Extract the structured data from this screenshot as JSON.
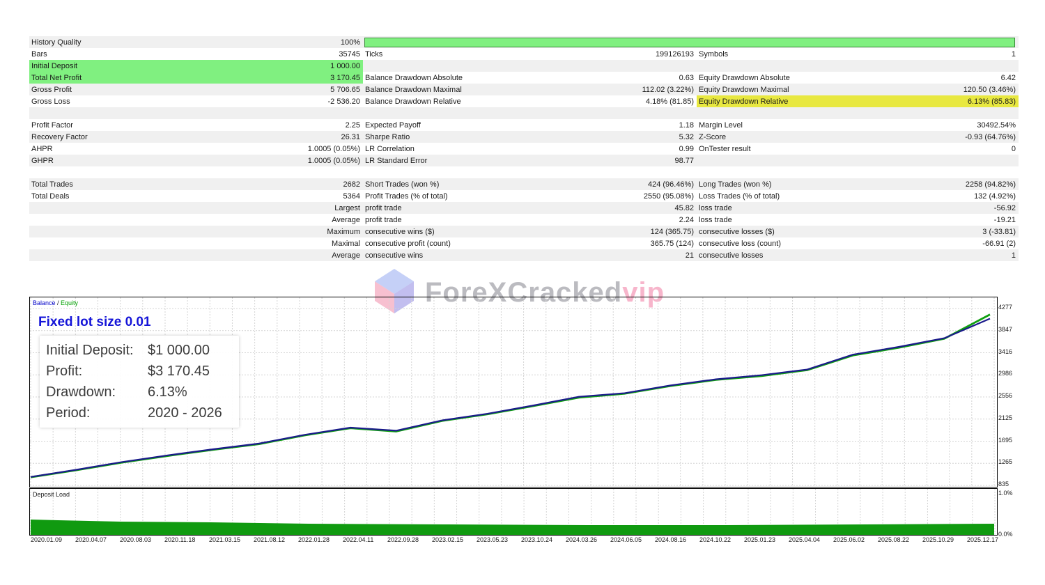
{
  "stats": {
    "rows": [
      {
        "c1": {
          "label": "History Quality",
          "value": "100%"
        },
        "quality_bar": true
      },
      {
        "c1": {
          "label": "Bars",
          "value": "35745"
        },
        "c2": {
          "label": "Ticks",
          "value": "199126193"
        },
        "c3": {
          "label": "Symbols",
          "value": "1"
        }
      },
      {
        "c1": {
          "label": "Initial Deposit",
          "value": "1 000.00",
          "highlight": "green"
        }
      },
      {
        "c1": {
          "label": "Total Net Profit",
          "value": "3 170.45",
          "highlight": "green"
        },
        "c2": {
          "label": "Balance Drawdown Absolute",
          "value": "0.63"
        },
        "c3": {
          "label": "Equity Drawdown Absolute",
          "value": "6.42"
        }
      },
      {
        "c1": {
          "label": "Gross Profit",
          "value": "5 706.65"
        },
        "c2": {
          "label": "Balance Drawdown Maximal",
          "value": "112.02 (3.22%)"
        },
        "c3": {
          "label": "Equity Drawdown Maximal",
          "value": "120.50 (3.46%)"
        }
      },
      {
        "c1": {
          "label": "Gross Loss",
          "value": "-2 536.20"
        },
        "c2": {
          "label": "Balance Drawdown Relative",
          "value": "4.18% (81.85)"
        },
        "c3": {
          "label": "Equity Drawdown Relative",
          "value": "6.13% (85.83)",
          "highlight": "yellow"
        }
      },
      {},
      {
        "c1": {
          "label": "Profit Factor",
          "value": "2.25"
        },
        "c2": {
          "label": "Expected Payoff",
          "value": "1.18"
        },
        "c3": {
          "label": "Margin Level",
          "value": "30492.54%"
        }
      },
      {
        "c1": {
          "label": "Recovery Factor",
          "value": "26.31"
        },
        "c2": {
          "label": "Sharpe Ratio",
          "value": "5.32"
        },
        "c3": {
          "label": "Z-Score",
          "value": "-0.93 (64.76%)"
        }
      },
      {
        "c1": {
          "label": "AHPR",
          "value": "1.0005 (0.05%)"
        },
        "c2": {
          "label": "LR Correlation",
          "value": "0.99"
        },
        "c3": {
          "label": "OnTester result",
          "value": "0"
        }
      },
      {
        "c1": {
          "label": "GHPR",
          "value": "1.0005 (0.05%)"
        },
        "c2": {
          "label": "LR Standard Error",
          "value": "98.77"
        }
      },
      {},
      {
        "c1": {
          "label": "Total Trades",
          "value": "2682"
        },
        "c2": {
          "label": "Short Trades (won %)",
          "value": "424 (96.46%)"
        },
        "c3": {
          "label": "Long Trades (won %)",
          "value": "2258 (94.82%)"
        }
      },
      {
        "c1": {
          "label": "Total Deals",
          "value": "5364"
        },
        "c2": {
          "label": "Profit Trades (% of total)",
          "value": "2550 (95.08%)"
        },
        "c3": {
          "label": "Loss Trades (% of total)",
          "value": "132 (4.92%)"
        }
      },
      {
        "c1": {
          "label": "Largest",
          "align": "right"
        },
        "c2": {
          "label": "profit trade",
          "value": "45.82"
        },
        "c3": {
          "label": "loss trade",
          "value": "-56.92"
        }
      },
      {
        "c1": {
          "label": "Average",
          "align": "right"
        },
        "c2": {
          "label": "profit trade",
          "value": "2.24"
        },
        "c3": {
          "label": "loss trade",
          "value": "-19.21"
        }
      },
      {
        "c1": {
          "label": "Maximum",
          "align": "right"
        },
        "c2": {
          "label": "consecutive wins ($)",
          "value": "124 (365.75)"
        },
        "c3": {
          "label": "consecutive losses ($)",
          "value": "3 (-33.81)"
        }
      },
      {
        "c1": {
          "label": "Maximal",
          "align": "right"
        },
        "c2": {
          "label": "consecutive profit (count)",
          "value": "365.75 (124)"
        },
        "c3": {
          "label": "consecutive loss (count)",
          "value": "-66.91 (2)"
        }
      },
      {
        "c1": {
          "label": "Average",
          "align": "right"
        },
        "c2": {
          "label": "consecutive wins",
          "value": "21"
        },
        "c3": {
          "label": "consecutive losses",
          "value": "1"
        }
      }
    ]
  },
  "watermark": {
    "brand": "ForeXCracked",
    "suffix": "vip"
  },
  "chart": {
    "legend_balance": "Balance",
    "legend_sep": " / ",
    "legend_equity": "Equity",
    "overlay_title": "Fixed lot size 0.01",
    "info": [
      {
        "key": "Initial Deposit:",
        "value": "$1 000.00"
      },
      {
        "key": "Profit:",
        "value": "$3 170.45"
      },
      {
        "key": "Drawdown:",
        "value": "6.13%"
      },
      {
        "key": "Period:",
        "value": "2020 - 2026"
      }
    ],
    "load_title": "Deposit Load",
    "load_ticks": [
      "1.0%",
      "0.0%"
    ]
  },
  "chart_data": {
    "type": "line",
    "title": "",
    "x": [
      "2020.01.09",
      "2020.04.07",
      "2020.08.03",
      "2020.11.18",
      "2021.03.15",
      "2021.08.12",
      "2022.01.28",
      "2022.04.11",
      "2022.09.28",
      "2023.02.15",
      "2023.05.23",
      "2023.10.24",
      "2024.03.26",
      "2024.06.05",
      "2024.08.16",
      "2024.10.22",
      "2025.01.23",
      "2025.04.04",
      "2025.06.02",
      "2025.08.22",
      "2025.10.29",
      "2025.12.17"
    ],
    "series": [
      {
        "name": "Balance",
        "color": "#1a1a8a",
        "values": [
          1000,
          1140,
          1290,
          1420,
          1540,
          1650,
          1820,
          1960,
          1900,
          2100,
          2230,
          2390,
          2560,
          2630,
          2780,
          2900,
          2980,
          3090,
          3380,
          3530,
          3700,
          4080
        ]
      },
      {
        "name": "Equity",
        "color": "#10a010",
        "values": [
          995,
          1132,
          1280,
          1410,
          1530,
          1640,
          1810,
          1950,
          1885,
          2090,
          2220,
          2380,
          2545,
          2620,
          2770,
          2890,
          2965,
          3080,
          3365,
          3515,
          3690,
          4160
        ]
      }
    ],
    "yticks": [
      835,
      1265,
      1695,
      2125,
      2556,
      2986,
      3416,
      3847,
      4277
    ],
    "ylim": [
      835,
      4277
    ],
    "grid": true,
    "legend": "top-left"
  }
}
